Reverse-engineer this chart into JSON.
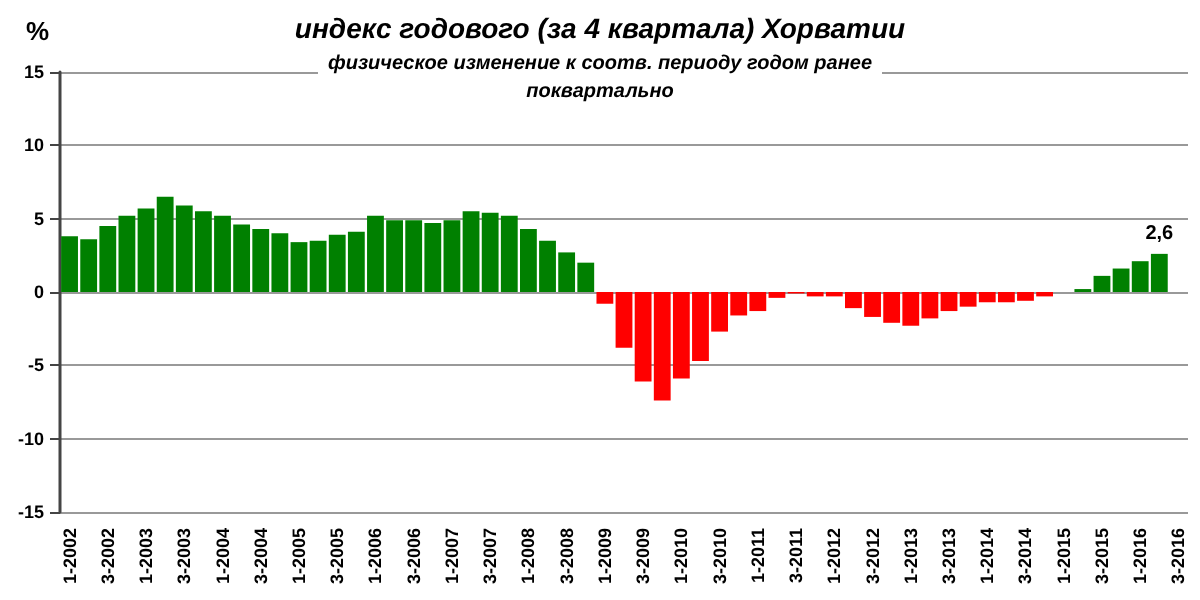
{
  "chart_data": {
    "type": "bar",
    "title": "индекс годового (за 4 квартала) Хорватии",
    "subtitle": "физическое изменение к соотв. периоду годом ранее\nпоквартально",
    "ylabel": "%",
    "categories": [
      "1-2002",
      null,
      "3-2002",
      null,
      "1-2003",
      null,
      "3-2003",
      null,
      "1-2004",
      null,
      "3-2004",
      null,
      "1-2005",
      null,
      "3-2005",
      null,
      "1-2006",
      null,
      "3-2006",
      null,
      "1-2007",
      null,
      "3-2007",
      null,
      "1-2008",
      null,
      "3-2008",
      null,
      "1-2009",
      null,
      "3-2009",
      null,
      "1-2010",
      null,
      "3-2010",
      null,
      "1-2011",
      null,
      "3-2011",
      null,
      "1-2012",
      null,
      "3-2012",
      null,
      "1-2013",
      null,
      "3-2013",
      null,
      "1-2014",
      null,
      "3-2014",
      null,
      "1-2015",
      null,
      "3-2015",
      null,
      "1-2016",
      null,
      "3-2016"
    ],
    "values": [
      3.8,
      3.6,
      4.5,
      5.2,
      5.7,
      6.5,
      5.9,
      5.5,
      5.2,
      4.6,
      4.3,
      4.0,
      3.4,
      3.5,
      3.9,
      4.1,
      5.2,
      4.9,
      4.9,
      4.7,
      4.9,
      5.5,
      5.4,
      5.2,
      4.3,
      3.5,
      2.7,
      2.0,
      -0.8,
      -3.8,
      -6.1,
      -7.4,
      -5.9,
      -4.7,
      -2.7,
      -1.6,
      -1.3,
      -0.4,
      -0.1,
      -0.3,
      -0.3,
      -1.1,
      -1.7,
      -2.1,
      -2.3,
      -1.8,
      -1.3,
      -1.0,
      -0.7,
      -0.7,
      -0.6,
      -0.3,
      0,
      0.2,
      1.1,
      1.6,
      2.1,
      2.6,
      null
    ],
    "colors": [
      "#008000",
      "#008000",
      "#008000",
      "#008000",
      "#008000",
      "#008000",
      "#008000",
      "#008000",
      "#008000",
      "#008000",
      "#008000",
      "#008000",
      "#008000",
      "#008000",
      "#008000",
      "#008000",
      "#008000",
      "#008000",
      "#008000",
      "#008000",
      "#008000",
      "#008000",
      "#008000",
      "#008000",
      "#008000",
      "#008000",
      "#008000",
      "#008000",
      "#ff0000",
      "#ff0000",
      "#ff0000",
      "#ff0000",
      "#ff0000",
      "#ff0000",
      "#ff0000",
      "#ff0000",
      "#ff0000",
      "#ff0000",
      "#ff0000",
      "#ff0000",
      "#ff0000",
      "#ff0000",
      "#ff0000",
      "#ff0000",
      "#ff0000",
      "#ff0000",
      "#ff0000",
      "#ff0000",
      "#ff0000",
      "#ff0000",
      "#ff0000",
      "#ff0000",
      "#008000",
      "#008000",
      "#008000",
      "#008000",
      "#008000",
      "#008000",
      "#008000"
    ],
    "value_labels": [
      null,
      null,
      null,
      null,
      null,
      null,
      null,
      null,
      null,
      null,
      null,
      null,
      null,
      null,
      null,
      null,
      null,
      null,
      null,
      null,
      null,
      null,
      null,
      null,
      null,
      null,
      null,
      null,
      null,
      null,
      null,
      null,
      null,
      null,
      null,
      null,
      null,
      null,
      null,
      null,
      null,
      null,
      null,
      null,
      null,
      null,
      null,
      null,
      null,
      null,
      null,
      null,
      null,
      null,
      null,
      null,
      null,
      "2,6",
      null
    ],
    "ylim": [
      -15,
      15
    ],
    "yticks": [
      -15,
      -10,
      -5,
      0,
      5,
      10,
      15
    ],
    "grid": "y"
  }
}
